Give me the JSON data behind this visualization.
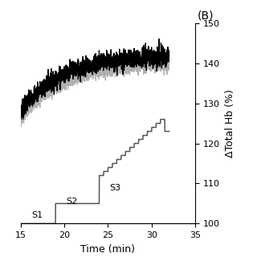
{
  "title": "(B)",
  "xlabel": "Time (min)",
  "ylabel": "ΔTotal Hb (%)",
  "xlim": [
    15,
    35
  ],
  "ylim": [
    100,
    150
  ],
  "yticks": [
    100,
    110,
    120,
    130,
    140,
    150
  ],
  "xticks": [
    15,
    20,
    25,
    30,
    35
  ],
  "background_color": "#ffffff",
  "line1_color": "#000000",
  "line2_color": "#b0b0b0",
  "staircase_color": "#555555",
  "s1_label": "S1",
  "s2_label": "S2",
  "s3_label": "S3",
  "s1_x": 16.3,
  "s2_x": 20.2,
  "s3_x": 25.2,
  "s1_y": 101.5,
  "s2_y": 104.8,
  "s3_y": 108.2
}
